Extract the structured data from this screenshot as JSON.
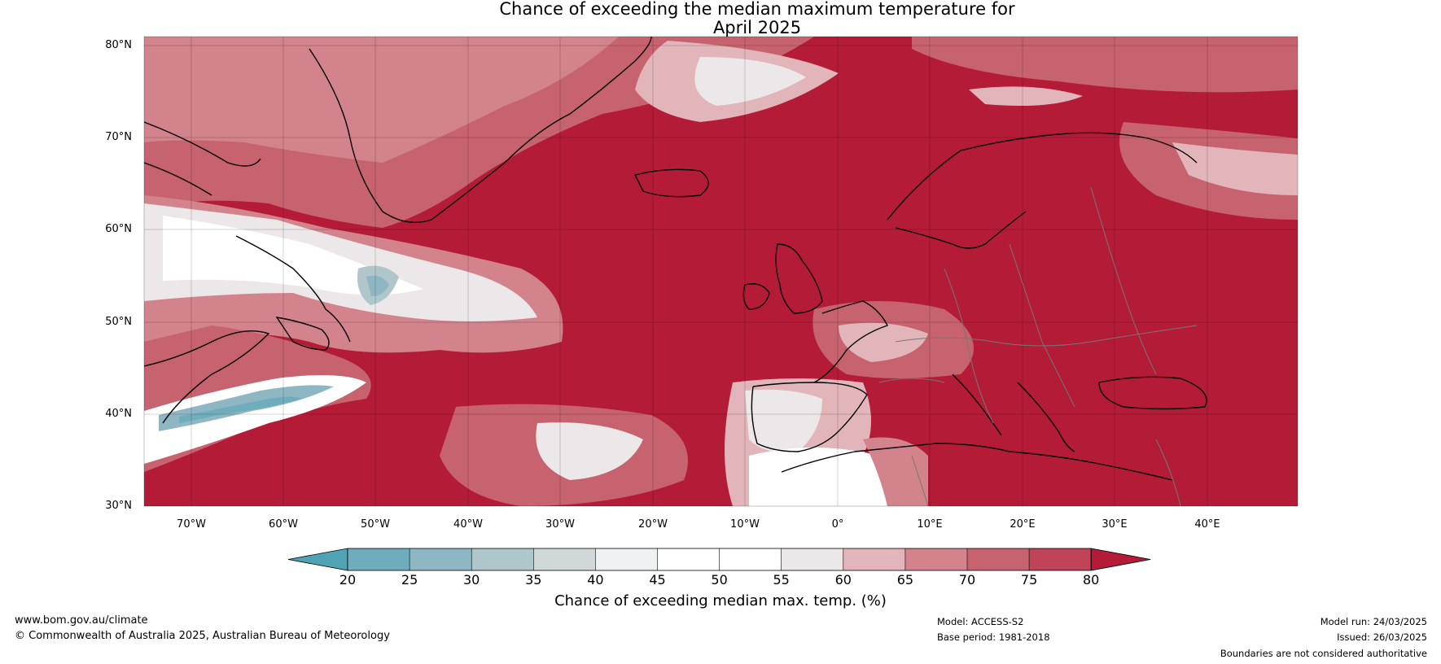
{
  "title": {
    "line1": "Chance of exceeding the median maximum temperature for",
    "line2": "April 2025"
  },
  "map": {
    "lat_labels": [
      "80°N",
      "70°N",
      "60°N",
      "50°N",
      "40°N",
      "30°N"
    ],
    "lon_labels": [
      "70°W",
      "60°W",
      "50°W",
      "40°W",
      "30°W",
      "20°W",
      "10°W",
      "0°",
      "10°E",
      "20°E",
      "30°E",
      "40°E"
    ]
  },
  "colorbar": {
    "ticks": [
      "20",
      "25",
      "30",
      "35",
      "40",
      "45",
      "50",
      "55",
      "60",
      "65",
      "70",
      "75",
      "80"
    ],
    "colors": [
      "#4fa3b4",
      "#6fadbd",
      "#8fb7c3",
      "#afc6cb",
      "#d0d8da",
      "#edf1f2",
      "#ffffff",
      "#ffffff",
      "#ece8e9",
      "#e2b5ba",
      "#d2838c",
      "#c6636e",
      "#bf4457",
      "#b31b36"
    ],
    "label": "Chance of exceeding median max. temp. (%)"
  },
  "footer": {
    "website": "www.bom.gov.au/climate",
    "copyright": "© Commonwealth of Australia 2025, Australian Bureau of Meteorology",
    "model": "Model: ACCESS-S2",
    "base_period": "Base period: 1981-2018",
    "model_run": "Model run: 24/03/2025",
    "issued": "Issued: 26/03/2025",
    "disclaimer": "Boundaries are not considered authoritative"
  }
}
